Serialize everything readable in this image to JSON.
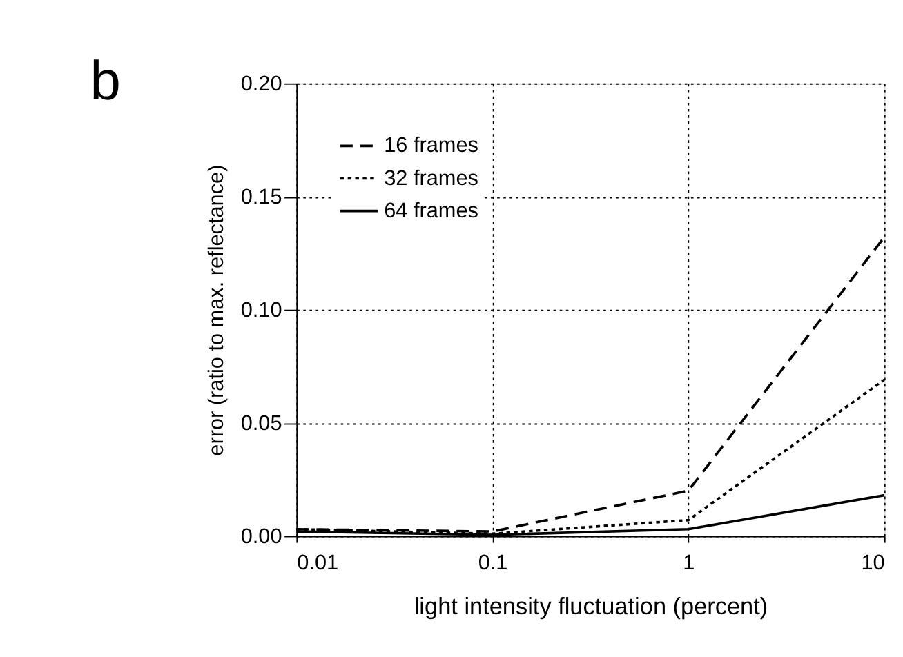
{
  "chart_data": {
    "type": "line",
    "xlabel": "light intensity fluctuation (percent)",
    "ylabel": "error (ratio to max. reflectance)",
    "annotations": [
      "b"
    ],
    "x": [
      0.01,
      0.1,
      1,
      10
    ],
    "series": [
      {
        "name": "16 frames",
        "color": "#000000",
        "line_style": "dashed",
        "values": [
          0.003,
          0.002,
          0.02,
          0.132
        ]
      },
      {
        "name": "32 frames",
        "color": "#000000",
        "line_style": "dotted",
        "values": [
          0.003,
          0.001,
          0.007,
          0.069
        ]
      },
      {
        "name": "64 frames",
        "color": "#000000",
        "line_style": "solid",
        "values": [
          0.002,
          0.0005,
          0.003,
          0.018
        ]
      }
    ],
    "log": "x",
    "xlim": [
      0.01,
      10
    ],
    "xticks": [
      0.01,
      0.1,
      1,
      10
    ],
    "ylim": [
      0,
      0.2
    ],
    "yticks": [
      {
        "value": 0,
        "label": "0.00"
      },
      {
        "value": 0.05,
        "label": "0.05"
      },
      {
        "value": 0.1,
        "label": "0.10"
      },
      {
        "value": 0.15,
        "label": "0.15"
      },
      {
        "value": 0.2,
        "label": "0.20"
      }
    ],
    "grid": true,
    "legend": "top left",
    "marker": "none"
  }
}
